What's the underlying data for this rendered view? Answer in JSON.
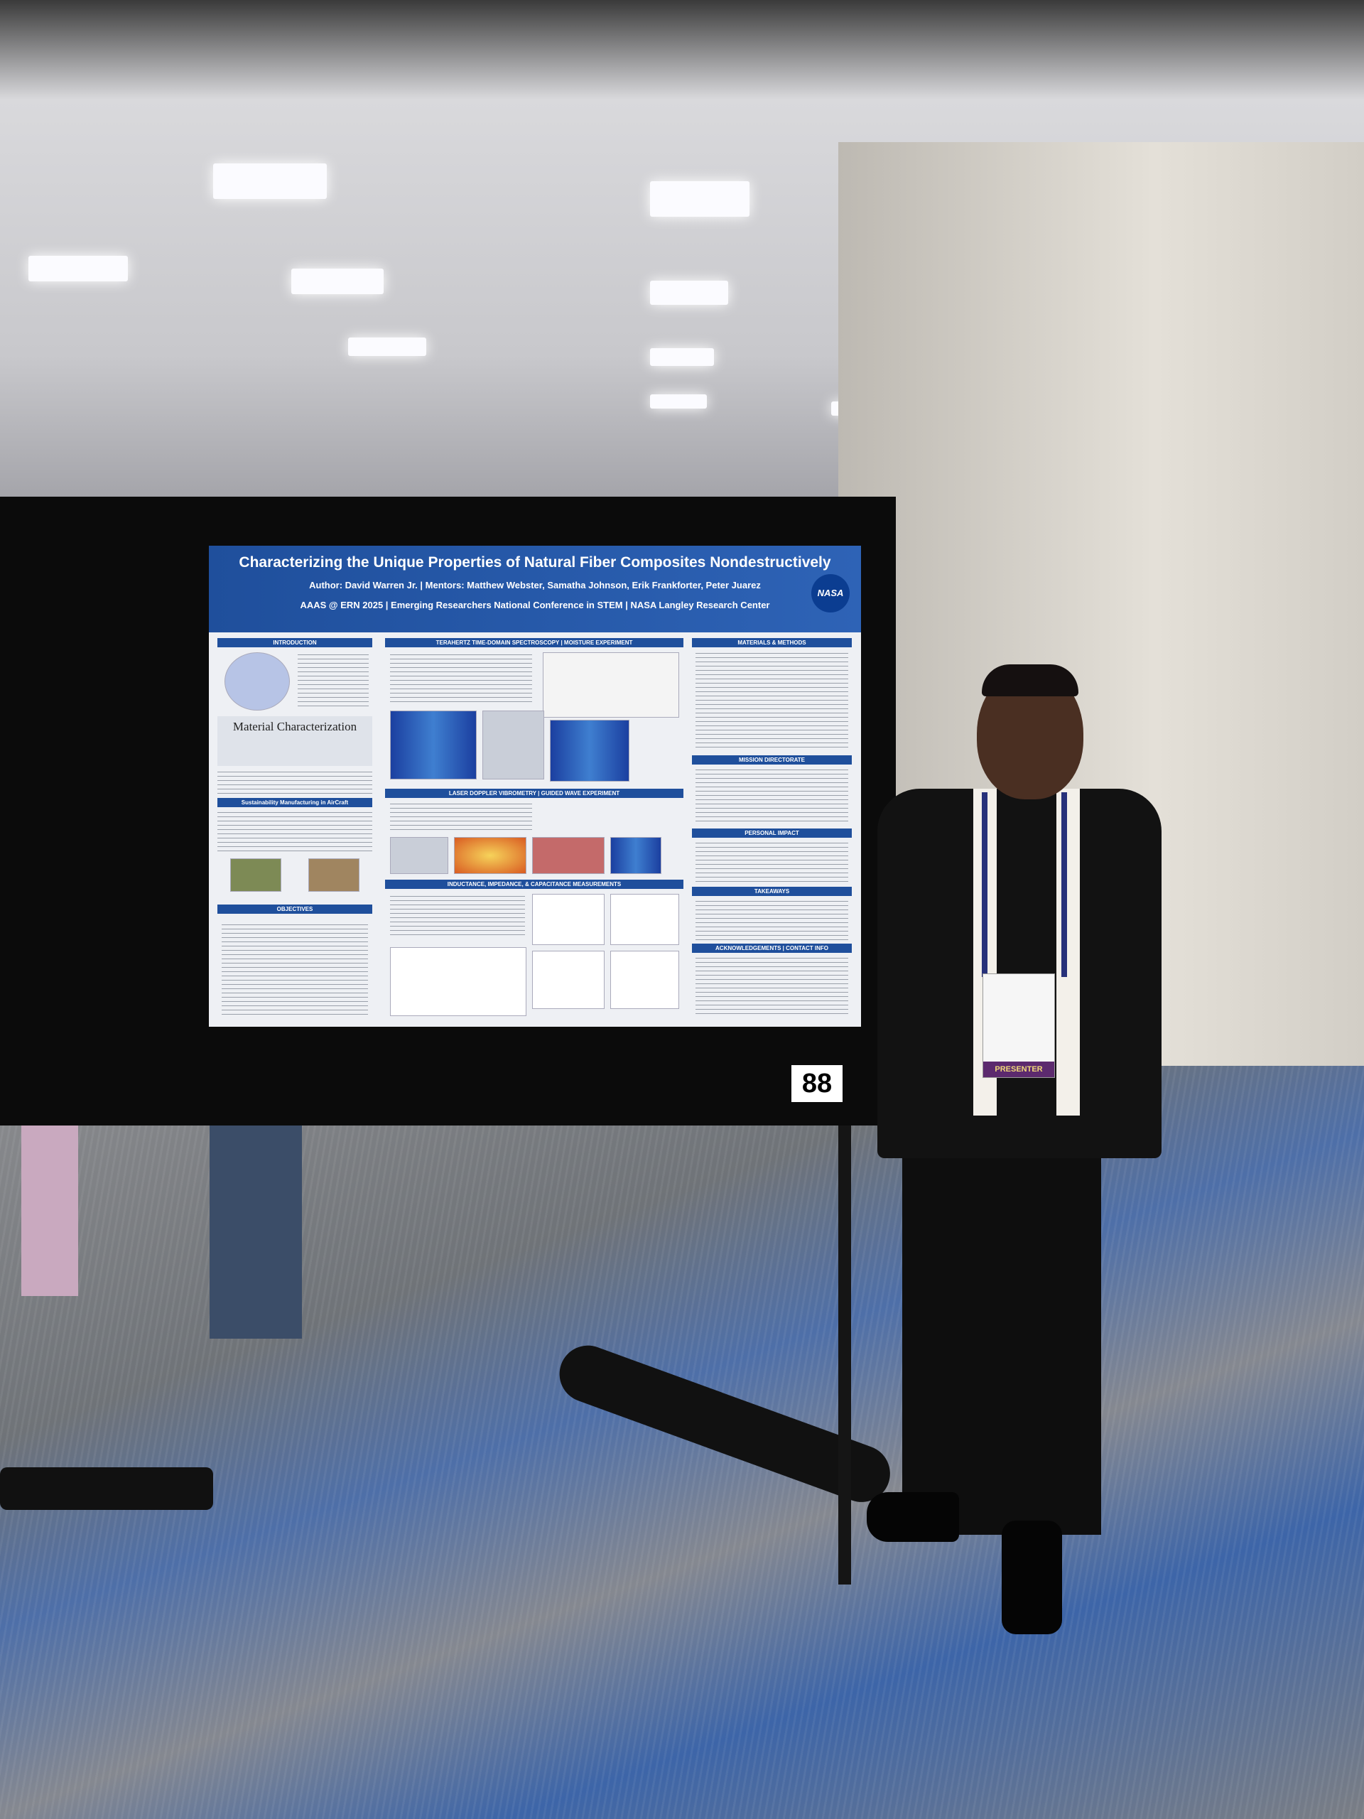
{
  "poster": {
    "title": "Characterizing the Unique Properties of Natural Fiber Composites Nondestructively",
    "byline": "Author: David Warren Jr. | Mentors: Matthew Webster, Samatha Johnson, Erik Frankforter, Peter Juarez",
    "conference": "AAAS @ ERN 2025 | Emerging Researchers National Conference in STEM | NASA Langley Research Center",
    "logo": "NASA",
    "sections": [
      "INTRODUCTION",
      "Material Characterization",
      "Sustainability Manufacturing in AirCraft",
      "OBJECTIVES",
      "TERAHERTZ TIME-DOMAIN SPECTROSCOPY | MOISTURE EXPERIMENT",
      "LASER DOPPLER VIBROMETRY | GUIDED WAVE EXPERIMENT",
      "INDUCTANCE, IMPEDANCE, & CAPACITANCE MEASUREMENTS",
      "MATERIALS & METHODS",
      "MISSION DIRECTORATE",
      "PERSONAL IMPACT",
      "TAKEAWAYS",
      "ACKNOWLEDGEMENTS | CONTACT INFO"
    ]
  },
  "board_number": "88",
  "badge": {
    "role": "PRESENTER"
  }
}
